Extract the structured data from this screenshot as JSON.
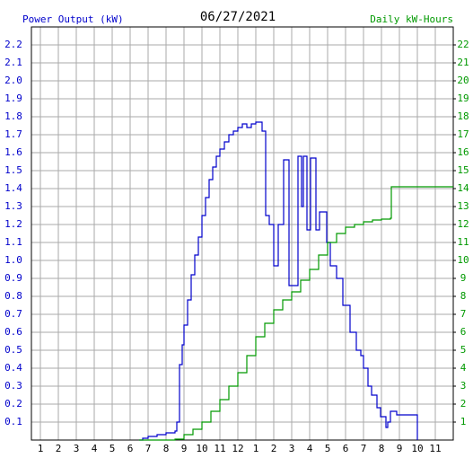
{
  "chart_data": {
    "type": "line",
    "title": "06/27/2021",
    "y_label": "Power Output (kW)",
    "y2_label": "Daily kW-Hours",
    "step": "post",
    "grid": true,
    "xlim": [
      0.5,
      24
    ],
    "xticks": [
      1,
      2,
      3,
      4,
      5,
      6,
      7,
      8,
      9,
      10,
      11,
      12,
      {
        "value": 13,
        "label": "1"
      },
      {
        "value": 14,
        "label": "2"
      },
      {
        "value": 15,
        "label": "3"
      },
      {
        "value": 16,
        "label": "4"
      },
      {
        "value": 17,
        "label": "5"
      },
      {
        "value": 18,
        "label": "6"
      },
      {
        "value": 19,
        "label": "7"
      },
      {
        "value": 20,
        "label": "8"
      },
      {
        "value": 21,
        "label": "9"
      },
      {
        "value": 22,
        "label": "10"
      },
      {
        "value": 23,
        "label": "11"
      }
    ],
    "ylim": [
      0,
      2.3
    ],
    "yticks": [
      0.1,
      0.2,
      0.3,
      0.4,
      0.5,
      0.6,
      0.7,
      0.8,
      0.9,
      {
        "value": 1,
        "label": "1.0"
      },
      1.1,
      1.2,
      1.3,
      1.4,
      1.5,
      1.6,
      1.7,
      1.8,
      1.9,
      {
        "value": 2,
        "label": "2.0"
      },
      2.1,
      2.2
    ],
    "y2lim": [
      0,
      23
    ],
    "y2ticks": [
      1,
      2,
      3,
      4,
      5,
      6,
      7,
      8,
      9,
      10,
      11,
      12,
      13,
      14,
      15,
      16,
      17,
      18,
      19,
      20,
      21,
      22
    ],
    "series": [
      {
        "name": "Power Output (kW)",
        "color": "#0000cc",
        "x": [
          6.5,
          6.7,
          7.0,
          7.5,
          8.0,
          8.5,
          8.6,
          8.75,
          8.9,
          9.0,
          9.2,
          9.4,
          9.6,
          9.8,
          10.0,
          10.2,
          10.4,
          10.6,
          10.8,
          11.0,
          11.25,
          11.5,
          11.75,
          12.0,
          12.25,
          12.5,
          12.75,
          13.0,
          13.35,
          13.55,
          13.75,
          14.0,
          14.25,
          14.55,
          14.85,
          15.35,
          15.55,
          15.65,
          15.85,
          16.05,
          16.35,
          16.55,
          16.95,
          17.15,
          17.5,
          17.85,
          18.25,
          18.6,
          18.85,
          19.0,
          19.25,
          19.45,
          19.75,
          19.95,
          20.25,
          20.35,
          20.5,
          20.85,
          22.0
        ],
        "values": [
          0,
          0.01,
          0.02,
          0.03,
          0.04,
          0.05,
          0.1,
          0.42,
          0.53,
          0.64,
          0.78,
          0.92,
          1.03,
          1.13,
          1.25,
          1.35,
          1.45,
          1.52,
          1.58,
          1.62,
          1.66,
          1.7,
          1.72,
          1.74,
          1.76,
          1.74,
          1.76,
          1.77,
          1.72,
          1.25,
          1.2,
          0.97,
          1.2,
          1.56,
          0.86,
          1.58,
          1.3,
          1.58,
          1.17,
          1.57,
          1.17,
          1.27,
          1.1,
          0.97,
          0.9,
          0.75,
          0.6,
          0.5,
          0.47,
          0.4,
          0.3,
          0.25,
          0.18,
          0.13,
          0.07,
          0.1,
          0.16,
          0.14,
          0
        ]
      },
      {
        "name": "Daily kW-Hours",
        "color": "#009900",
        "axis": "y2",
        "x": [
          6.5,
          8.5,
          9.0,
          9.5,
          10.0,
          10.5,
          11.0,
          11.5,
          12.0,
          12.5,
          13.0,
          13.5,
          14.0,
          14.5,
          15.0,
          15.5,
          16.0,
          16.5,
          17.0,
          17.5,
          18.0,
          18.5,
          19.0,
          19.5,
          20.0,
          20.5,
          20.55,
          24
        ],
        "values": [
          0,
          0.05,
          0.3,
          0.6,
          1.0,
          1.6,
          2.25,
          3.0,
          3.75,
          4.7,
          5.75,
          6.5,
          7.25,
          7.8,
          8.25,
          8.9,
          9.5,
          10.3,
          11.0,
          11.5,
          11.85,
          12.0,
          12.15,
          12.25,
          12.3,
          12.35,
          14.1,
          14.1
        ]
      }
    ]
  }
}
